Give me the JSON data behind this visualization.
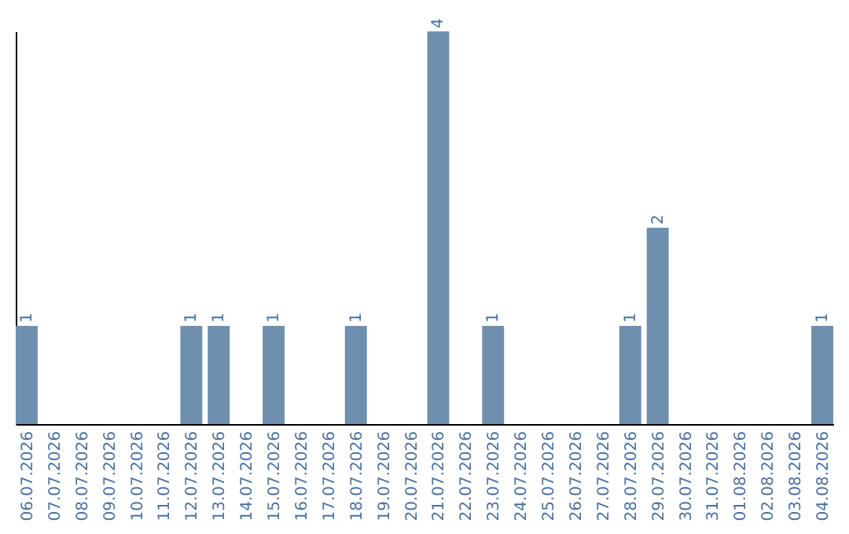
{
  "chart_data": {
    "type": "bar",
    "categories": [
      "06.07.2026",
      "07.07.2026",
      "08.07.2026",
      "09.07.2026",
      "10.07.2026",
      "11.07.2026",
      "12.07.2026",
      "13.07.2026",
      "14.07.2026",
      "15.07.2026",
      "16.07.2026",
      "17.07.2026",
      "18.07.2026",
      "19.07.2026",
      "20.07.2026",
      "21.07.2026",
      "22.07.2026",
      "23.07.2026",
      "24.07.2026",
      "25.07.2026",
      "26.07.2026",
      "27.07.2026",
      "28.07.2026",
      "29.07.2026",
      "30.07.2026",
      "31.07.2026",
      "01.08.2026",
      "02.08.2026",
      "03.08.2026",
      "04.08.2026"
    ],
    "values": [
      1,
      0,
      0,
      0,
      0,
      0,
      1,
      1,
      0,
      1,
      0,
      0,
      1,
      0,
      0,
      4,
      0,
      1,
      0,
      0,
      0,
      0,
      1,
      2,
      0,
      0,
      0,
      0,
      0,
      1
    ],
    "value_labels": [
      "1",
      null,
      null,
      null,
      null,
      null,
      "1",
      "1",
      null,
      "1",
      null,
      null,
      "1",
      null,
      null,
      "4",
      null,
      "1",
      null,
      null,
      null,
      null,
      "1",
      "2",
      null,
      null,
      null,
      null,
      null,
      "1"
    ],
    "color": "#6f8fae"
  }
}
